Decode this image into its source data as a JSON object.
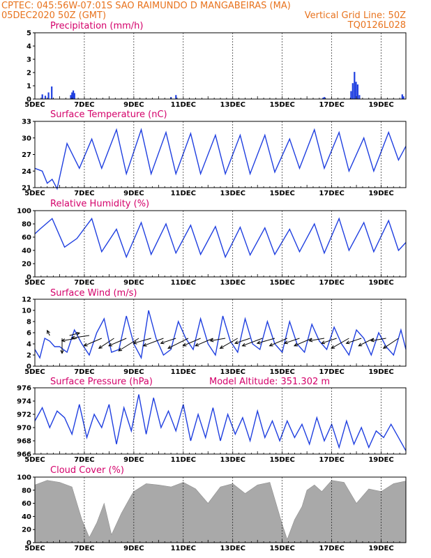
{
  "header": {
    "line1": "CPTEC:   045:56W-07:01S  SAO RAIMUNDO D MANGABEIRAS (MA)",
    "line2_left": "05DEC2020 50Z (GMT)",
    "line2_right": "Vertical Grid Line: 50Z",
    "line3_right": "TQ0126L028"
  },
  "colors": {
    "header": "#e8731e",
    "title": "#d4006a",
    "line": "#1f3fe0",
    "cloud": "#a9a9a9",
    "arrow": "#000000"
  },
  "x_axis": {
    "labels": [
      "5DEC",
      "7DEC",
      "9DEC",
      "11DEC",
      "13DEC",
      "15DEC",
      "17DEC",
      "19DEC"
    ],
    "grid_days": [
      7,
      9,
      11,
      13,
      15,
      17,
      19
    ],
    "range_days": [
      5,
      20
    ]
  },
  "panels": {
    "precip": {
      "title": "Precipitation (mm/h)",
      "yticks": [
        "0",
        "1",
        "2",
        "3",
        "4",
        "5"
      ]
    },
    "temp": {
      "title": "Surface Temperature (nC)",
      "yticks": [
        "21",
        "24",
        "27",
        "30",
        "33"
      ]
    },
    "rh": {
      "title": "Relative Humidity (%)",
      "yticks": [
        "0",
        "20",
        "40",
        "60",
        "80",
        "100"
      ]
    },
    "wind": {
      "title": "Surface Wind (m/s)",
      "yticks": [
        "0",
        "2",
        "4",
        "6",
        "8",
        "10",
        "12"
      ]
    },
    "pres": {
      "title": "Surface Pressure (hPa)",
      "altitude": "Model Altitude: 351.302 m",
      "yticks": [
        "966",
        "968",
        "970",
        "972",
        "974",
        "976"
      ]
    },
    "cloud": {
      "title": "Cloud Cover (%)",
      "yticks": [
        "0",
        "20",
        "40",
        "60",
        "80",
        "100"
      ]
    }
  },
  "chart_data": [
    {
      "type": "bar",
      "title": "Precipitation (mm/h)",
      "ylim": [
        0,
        5
      ],
      "x": [
        5.3,
        5.42,
        5.55,
        5.68,
        6.45,
        6.5,
        6.55,
        6.6,
        10.5,
        10.7,
        16.65,
        16.7,
        17.78,
        17.85,
        17.92,
        17.98,
        18.05,
        18.12,
        19.85,
        19.9
      ],
      "values": [
        0.35,
        0.25,
        0.5,
        0.95,
        0.3,
        0.5,
        0.65,
        0.45,
        0.15,
        0.3,
        0.1,
        0.15,
        0.6,
        1.2,
        2.05,
        1.3,
        1.1,
        0.3,
        0.35,
        0.2
      ]
    },
    {
      "type": "line",
      "title": "Surface Temperature (nC)",
      "ylim": [
        21,
        33
      ],
      "x": [
        5.0,
        5.3,
        5.5,
        5.7,
        5.9,
        6.3,
        6.8,
        7.3,
        7.7,
        8.3,
        8.7,
        9.3,
        9.7,
        10.3,
        10.7,
        11.3,
        11.7,
        12.3,
        12.7,
        13.3,
        13.7,
        14.3,
        14.7,
        15.3,
        15.7,
        16.3,
        16.7,
        17.3,
        17.7,
        18.3,
        18.7,
        19.3,
        19.7,
        20.0
      ],
      "values": [
        24.5,
        24.0,
        21.8,
        22.5,
        20.8,
        29.0,
        24.5,
        29.8,
        24.5,
        31.5,
        23.5,
        31.5,
        23.5,
        31.0,
        23.5,
        30.8,
        23.5,
        30.5,
        23.5,
        30.5,
        23.5,
        30.5,
        23.8,
        29.8,
        24.5,
        31.5,
        24.5,
        31.0,
        24.0,
        30.0,
        24.0,
        31.0,
        26.0,
        28.5
      ]
    },
    {
      "type": "line",
      "title": "Relative Humidity (%)",
      "ylim": [
        0,
        100
      ],
      "x": [
        5.0,
        5.2,
        5.7,
        6.2,
        6.7,
        7.3,
        7.7,
        8.3,
        8.7,
        9.3,
        9.7,
        10.3,
        10.7,
        11.3,
        11.7,
        12.3,
        12.7,
        13.3,
        13.7,
        14.3,
        14.7,
        15.3,
        15.7,
        16.3,
        16.7,
        17.3,
        17.7,
        18.3,
        18.7,
        19.3,
        19.7,
        20.0
      ],
      "values": [
        65,
        72,
        88,
        45,
        58,
        88,
        38,
        72,
        30,
        82,
        34,
        80,
        36,
        78,
        34,
        76,
        30,
        75,
        33,
        74,
        34,
        72,
        38,
        80,
        36,
        88,
        40,
        82,
        38,
        85,
        40,
        52
      ]
    },
    {
      "type": "line",
      "title": "Surface Wind (m/s)",
      "ylim": [
        0,
        12
      ],
      "x": [
        5.0,
        5.2,
        5.4,
        5.6,
        5.8,
        6.0,
        6.3,
        6.6,
        6.9,
        7.2,
        7.5,
        7.8,
        8.1,
        8.4,
        8.7,
        9.0,
        9.3,
        9.6,
        9.9,
        10.2,
        10.5,
        10.8,
        11.1,
        11.4,
        11.7,
        12.0,
        12.3,
        12.6,
        12.9,
        13.2,
        13.5,
        13.8,
        14.1,
        14.4,
        14.7,
        15.0,
        15.3,
        15.6,
        15.9,
        16.2,
        16.5,
        16.8,
        17.1,
        17.4,
        17.7,
        18.0,
        18.3,
        18.6,
        18.9,
        19.2,
        19.5,
        19.8,
        20.0
      ],
      "values": [
        3.0,
        1.5,
        5.0,
        4.5,
        3.5,
        3.5,
        2.5,
        6.5,
        4.0,
        2.0,
        6.0,
        8.5,
        2.5,
        3.0,
        9.0,
        4.0,
        1.5,
        10.0,
        5.0,
        2.0,
        3.0,
        8.0,
        5.0,
        3.0,
        8.5,
        4.0,
        2.0,
        9.0,
        4.5,
        2.5,
        8.5,
        4.0,
        3.0,
        8.0,
        4.0,
        2.5,
        8.0,
        4.0,
        2.5,
        7.5,
        4.5,
        3.0,
        7.0,
        4.0,
        2.0,
        6.5,
        5.0,
        2.0,
        6.0,
        3.5,
        2.0,
        6.5,
        3.0
      ]
    },
    {
      "type": "line",
      "title": "Surface Pressure (hPa)",
      "ylim": [
        966,
        976
      ],
      "x": [
        5.0,
        5.3,
        5.6,
        5.9,
        6.2,
        6.5,
        6.8,
        7.1,
        7.4,
        7.7,
        8.0,
        8.3,
        8.6,
        8.9,
        9.2,
        9.5,
        9.8,
        10.1,
        10.4,
        10.7,
        11.0,
        11.3,
        11.6,
        11.9,
        12.2,
        12.5,
        12.8,
        13.1,
        13.4,
        13.7,
        14.0,
        14.3,
        14.6,
        14.9,
        15.2,
        15.5,
        15.8,
        16.1,
        16.4,
        16.7,
        17.0,
        17.3,
        17.6,
        17.9,
        18.2,
        18.5,
        18.8,
        19.1,
        19.4,
        19.7,
        20.0
      ],
      "values": [
        971.0,
        973.0,
        970.0,
        972.5,
        971.5,
        969.0,
        973.5,
        968.5,
        972.0,
        970.0,
        973.5,
        967.5,
        973.0,
        969.5,
        975.0,
        969.0,
        974.5,
        970.0,
        972.5,
        969.5,
        973.5,
        968.0,
        972.0,
        968.5,
        973.0,
        968.0,
        972.0,
        969.0,
        971.5,
        968.0,
        972.5,
        968.5,
        971.0,
        968.0,
        971.0,
        968.5,
        970.5,
        967.5,
        971.5,
        968.0,
        970.5,
        967.0,
        971.0,
        967.5,
        970.0,
        967.0,
        969.5,
        968.5,
        970.5,
        968.5,
        966.5
      ]
    },
    {
      "type": "area",
      "title": "Cloud Cover (%)",
      "ylim": [
        0,
        100
      ],
      "x": [
        5.0,
        5.5,
        6.0,
        6.5,
        6.9,
        7.2,
        7.5,
        7.8,
        8.1,
        8.5,
        8.9,
        9.0,
        9.5,
        10.0,
        10.5,
        11.0,
        11.5,
        12.0,
        12.5,
        13.0,
        13.5,
        14.0,
        14.5,
        15.0,
        15.2,
        15.5,
        15.8,
        16.0,
        16.3,
        16.6,
        17.0,
        17.5,
        18.0,
        18.5,
        19.0,
        19.5,
        20.0
      ],
      "values": [
        88,
        95,
        92,
        85,
        35,
        8,
        30,
        60,
        12,
        45,
        72,
        78,
        90,
        88,
        85,
        92,
        82,
        60,
        85,
        90,
        75,
        88,
        92,
        28,
        5,
        35,
        55,
        80,
        88,
        78,
        95,
        92,
        60,
        82,
        78,
        90,
        94
      ]
    }
  ],
  "wind_vectors": {
    "x": [
      5.6,
      6.1,
      6.4,
      6.7,
      7.2,
      7.7,
      8.2,
      8.7,
      9.2,
      9.7,
      10.2,
      10.7,
      11.2,
      11.7,
      12.2,
      12.7,
      13.2,
      13.7,
      14.2,
      14.7,
      15.2,
      15.7,
      16.2,
      16.7,
      17.2,
      17.7,
      18.2,
      18.7,
      19.2,
      19.7
    ],
    "y": [
      5.5,
      5.0,
      5.5,
      5.0,
      5.5,
      5.0,
      5.0,
      5.0,
      5.0,
      5.0,
      5.0,
      5.0,
      5.0,
      5.0,
      5.0,
      5.0,
      5.0,
      5.0,
      5.0,
      5.0,
      5.0,
      5.0,
      5.0,
      5.0,
      5.0,
      5.0,
      5.0,
      5.0,
      5.0,
      5.0
    ],
    "u": [
      -1,
      0,
      4,
      -6,
      -7,
      -7,
      -6,
      -7,
      -8,
      -7,
      -8,
      -6,
      -8,
      -7,
      -7,
      -6,
      -7,
      -6,
      -8,
      -7,
      -7,
      -6,
      -7,
      -6,
      -6,
      -7,
      -6,
      -6,
      -6,
      -6
    ],
    "v": [
      2,
      -6,
      1,
      -1,
      -1,
      -3,
      -4,
      -3,
      -5,
      -2,
      -3,
      -2,
      -4,
      -3,
      -3,
      -1,
      -4,
      -2,
      -3,
      -2,
      -3,
      -2,
      -3,
      -1,
      -2,
      -4,
      -2,
      -3,
      -1,
      -4
    ]
  }
}
